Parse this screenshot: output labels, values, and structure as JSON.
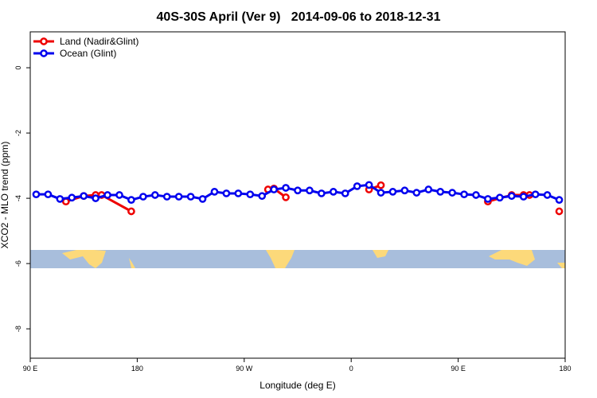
{
  "chart_data": {
    "type": "line",
    "title": "40S-30S April (Ver 9)   2014-09-06 to 2018-12-31",
    "x_label": "Longitude (deg E)",
    "y_label": "XCO2 - MLO trend (ppm)",
    "xlim": [
      90,
      540
    ],
    "ylim": [
      -8.9,
      1.1
    ],
    "xticks": [
      {
        "value": 90,
        "label": "90 E"
      },
      180,
      {
        "value": 270,
        "label": "90 W"
      },
      {
        "value": 360,
        "label": "0"
      },
      {
        "value": 450,
        "label": "90 E"
      },
      {
        "value": 540,
        "label": "180"
      }
    ],
    "yticks": [
      0,
      -2,
      -4,
      -6,
      -8
    ],
    "legend": "top-left",
    "series": [
      {
        "name": "Land (Nadir&Glint)",
        "color": "#ee0000",
        "x": [
          120,
          135,
          145,
          150,
          175,
          null,
          290,
          295,
          305,
          null,
          375,
          385,
          null,
          475,
          495,
          505,
          510,
          null,
          535
        ],
        "values": [
          -4.1,
          -3.93,
          -3.9,
          -3.9,
          -4.4,
          null,
          -3.73,
          -3.7,
          -3.97,
          null,
          -3.73,
          -3.6,
          null,
          -4.1,
          -3.9,
          -3.9,
          -3.9,
          null,
          -4.4
        ]
      },
      {
        "name": "Ocean (Glint)",
        "color": "#0000ee",
        "x": [
          95,
          105,
          115,
          125,
          135,
          145,
          155,
          165,
          175,
          185,
          195,
          205,
          215,
          225,
          235,
          245,
          255,
          265,
          275,
          285,
          295,
          305,
          315,
          325,
          335,
          345,
          355,
          365,
          375,
          385,
          395,
          405,
          415,
          425,
          435,
          445,
          455,
          465,
          475,
          485,
          495,
          505,
          515,
          525,
          535
        ],
        "values": [
          -3.88,
          -3.88,
          -4.02,
          -3.98,
          -3.93,
          -4.0,
          -3.9,
          -3.9,
          -4.05,
          -3.95,
          -3.9,
          -3.95,
          -3.95,
          -3.95,
          -4.02,
          -3.8,
          -3.85,
          -3.85,
          -3.88,
          -3.93,
          -3.73,
          -3.68,
          -3.76,
          -3.76,
          -3.85,
          -3.8,
          -3.85,
          -3.63,
          -3.59,
          -3.83,
          -3.8,
          -3.76,
          -3.83,
          -3.73,
          -3.8,
          -3.83,
          -3.88,
          -3.9,
          -4.02,
          -3.98,
          -3.93,
          -3.95,
          -3.88,
          -3.9,
          -4.05
        ]
      }
    ]
  }
}
